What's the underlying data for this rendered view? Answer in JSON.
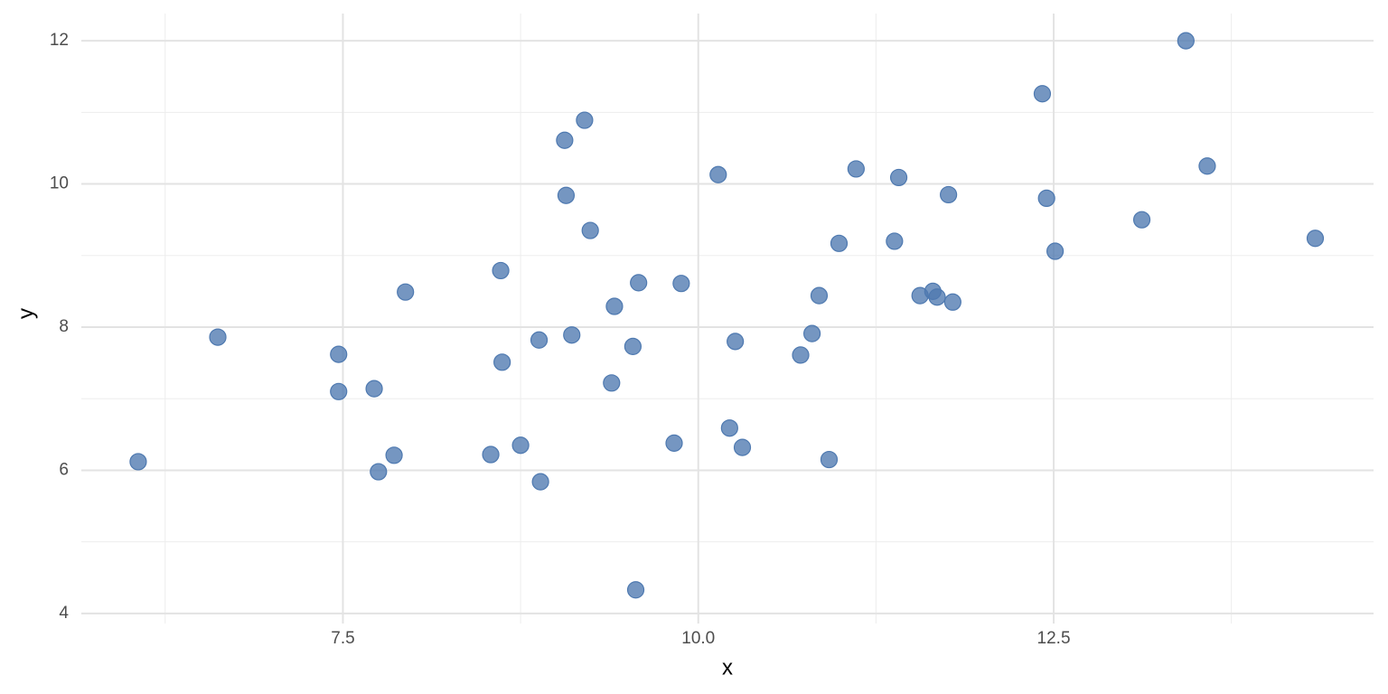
{
  "chart_data": {
    "type": "scatter",
    "x_label": "x",
    "y_label": "y",
    "color": "#4e79b0",
    "grid": true,
    "xlim": [
      5.66,
      14.75
    ],
    "ylim": [
      3.86,
      12.38
    ],
    "xticks": [
      7.5,
      {
        "value": 10,
        "label": "10.0"
      },
      12.5
    ],
    "yticks": [
      4,
      6,
      8,
      10,
      12
    ],
    "x_minor_ticks": [
      6.25,
      8.75,
      11.25,
      13.75
    ],
    "y_minor_ticks": [
      5,
      7,
      9,
      11
    ],
    "x": [
      6.06,
      6.62,
      7.47,
      7.47,
      7.72,
      7.75,
      7.86,
      7.94,
      8.54,
      8.61,
      8.62,
      8.75,
      8.88,
      8.89,
      9.06,
      9.07,
      9.11,
      9.2,
      9.24,
      9.39,
      9.41,
      9.54,
      9.56,
      9.58,
      9.83,
      9.88,
      10.14,
      10.22,
      10.26,
      10.31,
      10.72,
      10.8,
      10.85,
      10.92,
      10.99,
      11.11,
      11.38,
      11.41,
      11.56,
      11.65,
      11.68,
      11.76,
      11.79,
      12.42,
      12.45,
      12.51,
      13.12,
      13.43,
      13.58,
      14.34
    ],
    "values": [
      6.12,
      7.86,
      7.62,
      7.1,
      7.14,
      5.98,
      6.21,
      8.49,
      6.22,
      8.79,
      7.51,
      6.35,
      7.82,
      5.84,
      10.61,
      9.84,
      7.89,
      10.89,
      9.35,
      7.22,
      8.29,
      7.73,
      4.33,
      8.62,
      6.38,
      8.61,
      10.13,
      6.59,
      7.8,
      6.32,
      7.61,
      7.91,
      8.44,
      6.15,
      9.17,
      10.21,
      9.2,
      10.09,
      8.44,
      8.5,
      8.42,
      9.85,
      8.35,
      11.26,
      9.8,
      9.06,
      9.5,
      12.0,
      10.25,
      9.24
    ]
  }
}
